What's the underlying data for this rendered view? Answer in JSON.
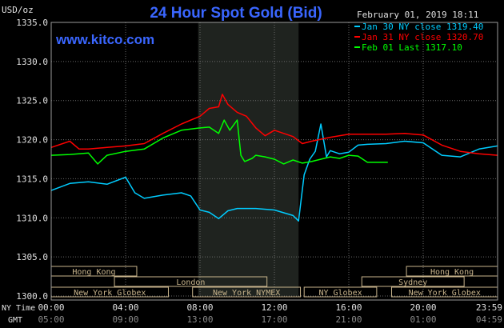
{
  "chart_data": {
    "type": "line",
    "title": "24 Hour Spot Gold (Bid)",
    "ylabel": "USD/oz",
    "watermark": "www.kitco.com",
    "date_label": "February 01, 2019 18:11",
    "ylim": [
      1300,
      1335
    ],
    "yticks": [
      "1300.0",
      "1305.0",
      "1310.0",
      "1315.0",
      "1320.0",
      "1325.0",
      "1330.0",
      "1335.0"
    ],
    "xlim": [
      0,
      24
    ],
    "x_ny_label": "NY Time",
    "x_gmt_label": "GMT",
    "x_ny_ticks": [
      "00:00",
      "04:00",
      "08:00",
      "12:00",
      "16:00",
      "20:00",
      "23:59"
    ],
    "x_gmt_ticks": [
      "05:00",
      "09:00",
      "13:00",
      "17:00",
      "21:00",
      "01:00",
      "04:59"
    ],
    "x_tick_hours": [
      0,
      4,
      8,
      12,
      16,
      20,
      24
    ],
    "highlight_band": [
      7.9,
      13.3
    ],
    "legend": [
      {
        "label": "Jan 30 NY close 1319.40",
        "color": "#00ccff"
      },
      {
        "label": "Jan 31 NY close 1320.70",
        "color": "#ff0000"
      },
      {
        "label": "Feb 01 Last 1317.10",
        "color": "#00ff00"
      }
    ],
    "series": [
      {
        "name": "Jan 30",
        "color": "#00ccff",
        "x": [
          0,
          1,
          2,
          3,
          4,
          4.5,
          5,
          6,
          7,
          7.5,
          8,
          8.5,
          9,
          9.5,
          10,
          11,
          12,
          13,
          13.3,
          13.6,
          13.9,
          14.2,
          14.5,
          14.8,
          15,
          15.5,
          16,
          16.5,
          17,
          18,
          19,
          20,
          21,
          22,
          23,
          24
        ],
        "y": [
          1313.5,
          1314.4,
          1314.6,
          1314.3,
          1315.2,
          1313.2,
          1312.5,
          1312.9,
          1313.2,
          1312.8,
          1311.0,
          1310.7,
          1309.9,
          1310.9,
          1311.2,
          1311.2,
          1311.0,
          1310.3,
          1309.6,
          1315.5,
          1317.5,
          1318.5,
          1322.0,
          1317.8,
          1318.6,
          1318.2,
          1318.4,
          1319.3,
          1319.4,
          1319.5,
          1319.8,
          1319.6,
          1318.0,
          1317.8,
          1318.8,
          1319.2
        ]
      },
      {
        "name": "Jan 31",
        "color": "#ff0000",
        "x": [
          0,
          1,
          1.5,
          2,
          3,
          4,
          5,
          6,
          7,
          8,
          8.5,
          9,
          9.2,
          9.5,
          10,
          10.5,
          11,
          11.5,
          12,
          13,
          13.5,
          14,
          15,
          16,
          17,
          18,
          19,
          20,
          21,
          22,
          23,
          24
        ],
        "y": [
          1319.0,
          1319.8,
          1318.8,
          1318.8,
          1319.0,
          1319.2,
          1319.5,
          1320.8,
          1322.0,
          1323.0,
          1324.0,
          1324.2,
          1325.8,
          1324.5,
          1323.5,
          1323.0,
          1321.5,
          1320.5,
          1321.2,
          1320.4,
          1319.5,
          1319.8,
          1320.3,
          1320.7,
          1320.7,
          1320.7,
          1320.8,
          1320.6,
          1319.3,
          1318.5,
          1318.2,
          1318.0
        ]
      },
      {
        "name": "Feb 01",
        "color": "#00ff00",
        "x": [
          0,
          1,
          2,
          2.5,
          3,
          4,
          5,
          6,
          7,
          8,
          8.5,
          9,
          9.3,
          9.6,
          10,
          10.2,
          10.4,
          10.8,
          11,
          11.5,
          12,
          12.5,
          13,
          13.5,
          14,
          14.5,
          15,
          15.5,
          16,
          16.5,
          17,
          17.5,
          18.1
        ],
        "y": [
          1318.0,
          1318.1,
          1318.3,
          1316.9,
          1318.0,
          1318.5,
          1318.8,
          1320.2,
          1321.2,
          1321.5,
          1321.6,
          1320.8,
          1322.5,
          1321.2,
          1322.5,
          1318.0,
          1317.2,
          1317.6,
          1318.0,
          1317.8,
          1317.5,
          1316.9,
          1317.4,
          1317.0,
          1317.2,
          1317.5,
          1317.8,
          1317.6,
          1318.0,
          1317.9,
          1317.1,
          1317.1,
          1317.1
        ]
      }
    ],
    "sessions_row1": [
      {
        "label": "Hong Kong",
        "start": 0,
        "end": 4.6
      },
      {
        "label": "Hong Kong",
        "start": 19.1,
        "end": 24
      }
    ],
    "sessions_row2": [
      {
        "label": "London",
        "start": 3.4,
        "end": 11.6
      },
      {
        "label": "Sydney",
        "start": 16.7,
        "end": 22.2
      }
    ],
    "sessions_row3": [
      {
        "label": "New York Globex",
        "start": 0,
        "end": 6.3
      },
      {
        "label": "New York NYMEX",
        "start": 7.6,
        "end": 13.4
      },
      {
        "label": "NY Globex",
        "start": 13.6,
        "end": 17.5
      },
      {
        "label": "New York Globex",
        "start": 18.3,
        "end": 24
      }
    ]
  }
}
